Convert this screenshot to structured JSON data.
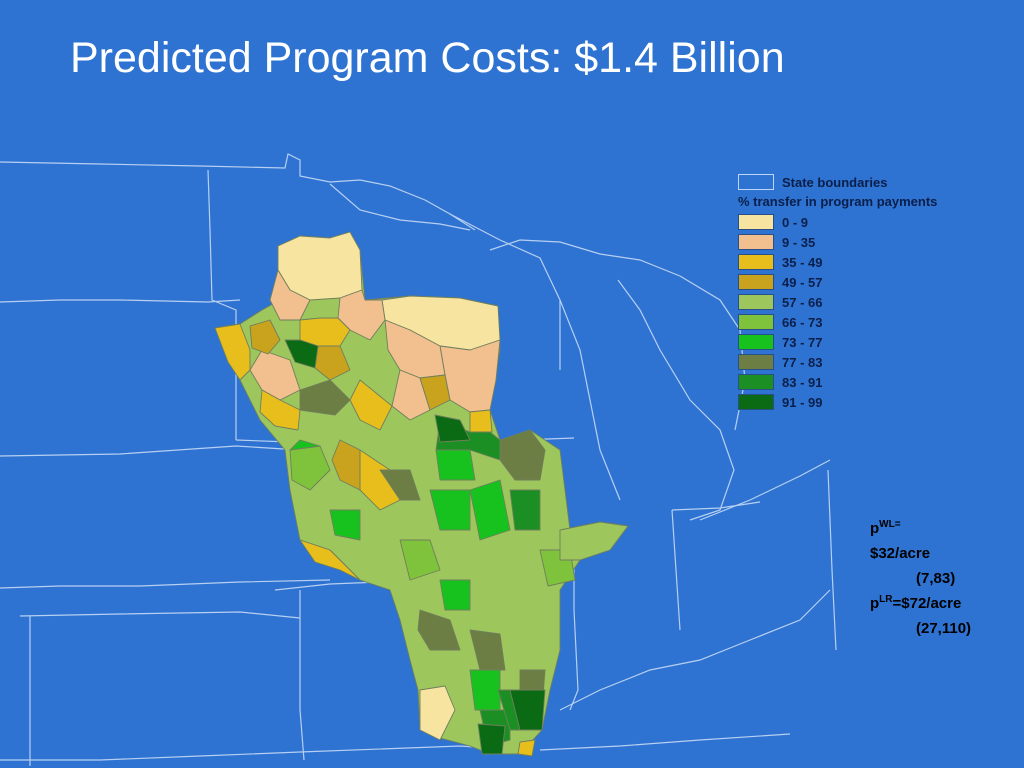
{
  "title": "Predicted Program Costs: $1.4 Billion",
  "legend": {
    "boundary_label": "State boundaries",
    "subtitle": "% transfer in program payments",
    "bins": [
      {
        "label": "0 - 9",
        "color": "#f7e4a0"
      },
      {
        "label": "9 - 35",
        "color": "#f2bf8f"
      },
      {
        "label": "35 - 49",
        "color": "#e8be1c"
      },
      {
        "label": "49 - 57",
        "color": "#c9a31e"
      },
      {
        "label": "57 - 66",
        "color": "#9dc65c"
      },
      {
        "label": "66 - 73",
        "color": "#7fc33c"
      },
      {
        "label": "73 - 77",
        "color": "#18c21e"
      },
      {
        "label": "77 - 83",
        "color": "#6c7e43"
      },
      {
        "label": "83 - 91",
        "color": "#1b8f23"
      },
      {
        "label": "91 - 99",
        "color": "#0b6a14"
      }
    ]
  },
  "prices": {
    "wl_symbol": "p",
    "wl_superscript": "WL=",
    "wl_value": "$32/acre",
    "wl_range": "(7,83)",
    "lr_symbol": "p",
    "lr_superscript": "LR",
    "lr_value": "=$72/acre",
    "lr_range": "(27,110)"
  },
  "colors": {
    "background": "#2e73d2",
    "state_lines": "#cfe0f7",
    "watershed_borders": "#7a8a6a"
  }
}
